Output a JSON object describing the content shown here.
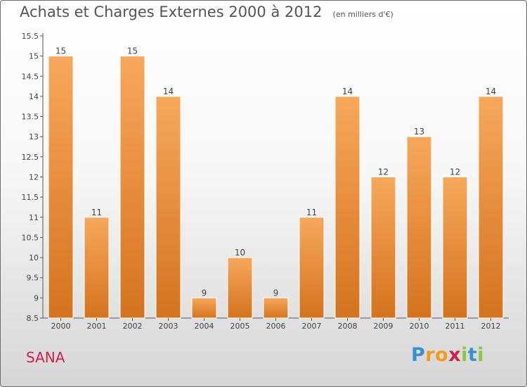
{
  "chart_data": {
    "type": "bar",
    "title": "Achats et Charges Externes 2000 à 2012",
    "unit": "(en milliers d'€)",
    "categories": [
      "2000",
      "2001",
      "2002",
      "2003",
      "2004",
      "2005",
      "2006",
      "2007",
      "2008",
      "2009",
      "2010",
      "2011",
      "2012"
    ],
    "values": [
      15,
      11,
      15,
      14,
      9,
      10,
      9,
      11,
      14,
      12,
      13,
      12,
      14
    ],
    "value_labels": [
      "15",
      "11",
      "15",
      "14",
      "9",
      "10",
      "9",
      "11",
      "14",
      "12",
      "13",
      "12",
      "14"
    ],
    "y_ticks": [
      "8.5",
      "9",
      "9.5",
      "10",
      "10.5",
      "11",
      "11.5",
      "12",
      "12.5",
      "13",
      "13.5",
      "14",
      "14.5",
      "15",
      "15.5"
    ],
    "ylim": [
      8.5,
      15.5
    ],
    "grid": false,
    "colors": {
      "bar_light": "#f7a85c",
      "bar_dark": "#d4731e",
      "bar_edge": "#ffffff"
    }
  },
  "commune": "SANA",
  "logo": {
    "letters": [
      "P",
      "r",
      "o",
      "x",
      "i",
      "t",
      "i"
    ],
    "colors": [
      "#3b8fd2",
      "#f29a1c",
      "#f29a1c",
      "#d01f4a",
      "#8dc63f",
      "#3b8fd2",
      "#8dc63f"
    ]
  }
}
